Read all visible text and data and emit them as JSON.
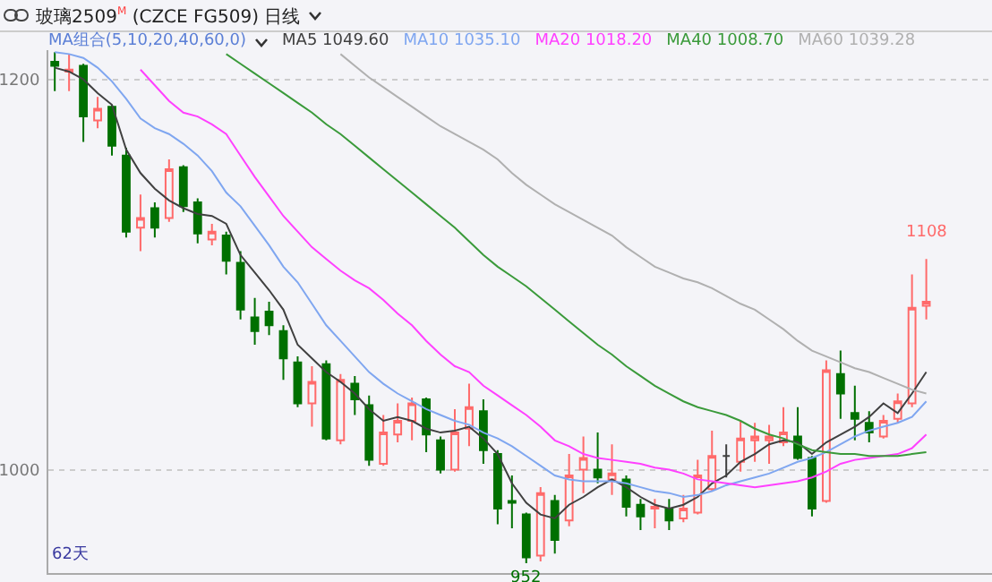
{
  "chart_data": {
    "type": "candlestick",
    "title": "玻璃2509$^{M}$ (CZCE FG509)  日线",
    "subtitle": "MA组合(5,10,20,40,60,0)",
    "categories": [
      null,
      null,
      null,
      null,
      null,
      null,
      null,
      null,
      null,
      null,
      null,
      null,
      null,
      null,
      null,
      null,
      null,
      null,
      null,
      null,
      null,
      null,
      null,
      null,
      null,
      null,
      null,
      null,
      null,
      null,
      null,
      null,
      null,
      null,
      null,
      null,
      null,
      null,
      null,
      null,
      null,
      null,
      null,
      null,
      null,
      null,
      null,
      null,
      null,
      null,
      null,
      null,
      null,
      null,
      null,
      null,
      null,
      null,
      null,
      null,
      null,
      null
    ],
    "ohlc": [
      [
        1209,
        1214,
        1194,
        1207
      ],
      [
        1204,
        1213,
        1194,
        1205
      ],
      [
        1207,
        1208,
        1168,
        1181
      ],
      [
        1179,
        1191,
        1175,
        1185
      ],
      [
        1186,
        1187,
        1161,
        1166
      ],
      [
        1161,
        1165,
        1119,
        1122
      ],
      [
        1124,
        1141,
        1112,
        1129
      ],
      [
        1134,
        1137,
        1119,
        1124
      ],
      [
        1129,
        1159,
        1127,
        1154
      ],
      [
        1155,
        1156,
        1132,
        1135
      ],
      [
        1137,
        1139,
        1116,
        1121
      ],
      [
        1118,
        1126,
        1115,
        1122
      ],
      [
        1120,
        1122,
        1100,
        1107
      ],
      [
        1106,
        1112,
        1077,
        1082
      ],
      [
        1078,
        1088,
        1064,
        1071
      ],
      [
        1081,
        1086,
        1069,
        1074
      ],
      [
        1071,
        1074,
        1046,
        1057
      ],
      [
        1055,
        1058,
        1032,
        1034
      ],
      [
        1034,
        1053,
        1022,
        1045
      ],
      [
        1054,
        1056,
        1015,
        1016
      ],
      [
        1015,
        1049,
        1013,
        1046
      ],
      [
        1044,
        1048,
        1028,
        1036
      ],
      [
        1033,
        1038,
        1002,
        1005
      ],
      [
        1003,
        1028,
        1002,
        1019
      ],
      [
        1018,
        1034,
        1014,
        1025
      ],
      [
        1025,
        1037,
        1015,
        1034
      ],
      [
        1036,
        1037,
        1009,
        1018
      ],
      [
        1015,
        1017,
        998,
        1000
      ],
      [
        1000,
        1031,
        999,
        1019
      ],
      [
        1021,
        1044,
        1012,
        1032
      ],
      [
        1030,
        1036,
        1003,
        1010
      ],
      [
        1008,
        1010,
        972,
        980
      ],
      [
        984,
        997,
        970,
        983
      ],
      [
        977,
        978,
        952,
        955
      ],
      [
        956,
        991,
        953,
        988
      ],
      [
        984,
        987,
        957,
        964
      ],
      [
        974,
        1008,
        971,
        997
      ],
      [
        1000,
        1017,
        988,
        1006
      ],
      [
        1000,
        1019,
        993,
        996
      ],
      [
        995,
        1013,
        987,
        998
      ],
      [
        995,
        997,
        976,
        981
      ],
      [
        982,
        985,
        969,
        976
      ],
      [
        980,
        985,
        970,
        981
      ],
      [
        980,
        985,
        969,
        974
      ],
      [
        975,
        987,
        973,
        980
      ],
      [
        978,
        1005,
        977,
        997
      ],
      [
        990,
        1020,
        989,
        1007
      ],
      [
        1007,
        1013,
        996,
        1007
      ],
      [
        1004,
        1025,
        999,
        1016
      ],
      [
        1015,
        1024,
        1004,
        1017
      ],
      [
        1015,
        1023,
        1003,
        1017
      ],
      [
        1014,
        1032,
        1012,
        1019
      ],
      [
        1017,
        1032,
        1005,
        1006
      ],
      [
        1006,
        1007,
        976,
        980
      ],
      [
        984,
        1056,
        983,
        1051
      ],
      [
        1049,
        1061,
        1026,
        1039
      ],
      [
        1029,
        1043,
        1015,
        1026
      ],
      [
        1024,
        1030,
        1014,
        1019
      ],
      [
        1017,
        1028,
        1016,
        1025
      ],
      [
        1026,
        1039,
        1024,
        1035
      ],
      [
        1034,
        1100,
        1032,
        1083
      ],
      [
        1084,
        1108,
        1077,
        1086
      ]
    ],
    "colors": [
      "#007000",
      "#ff6a6a",
      "#007000",
      "#ff6a6a",
      "#007000",
      "#007000",
      "#ff6a6a",
      "#007000",
      "#ff6a6a",
      "#007000",
      "#007000",
      "#ff6a6a",
      "#007000",
      "#007000",
      "#007000",
      "#007000",
      "#007000",
      "#007000",
      "#ff6a6a",
      "#007000",
      "#ff6a6a",
      "#007000",
      "#007000",
      "#ff6a6a",
      "#ff6a6a",
      "#ff6a6a",
      "#007000",
      "#007000",
      "#ff6a6a",
      "#ff6a6a",
      "#007000",
      "#007000",
      "#007000",
      "#007000",
      "#ff6a6a",
      "#007000",
      "#ff6a6a",
      "#ff6a6a",
      "#007000",
      "#ff6a6a",
      "#007000",
      "#007000",
      "#ff6a6a",
      "#007000",
      "#ff6a6a",
      "#ff6a6a",
      "#ff6a6a",
      "#404040",
      "#ff6a6a",
      "#ff6a6a",
      "#ff6a6a",
      "#ff6a6a",
      "#007000",
      "#007000",
      "#ff6a6a",
      "#007000",
      "#007000",
      "#007000",
      "#ff6a6a",
      "#ff6a6a",
      "#ff6a6a",
      "#ff6a6a"
    ],
    "series": [
      {
        "type": "line",
        "name": "MA5 1049.60",
        "color": "#404040",
        "values": [
          1206,
          1204,
          1200,
          1193,
          1187,
          1164,
          1152,
          1144,
          1138,
          1134,
          1131,
          1130,
          1126,
          1110,
          1101,
          1092,
          1082,
          1064,
          1057,
          1050,
          1045,
          1039,
          1031,
          1025,
          1027,
          1025,
          1021,
          1019,
          1020,
          1022,
          1016,
          1008,
          993,
          983,
          977,
          975,
          982,
          986,
          991,
          995,
          991,
          986,
          982,
          980,
          982,
          986,
          993,
          997,
          1004,
          1008,
          1013,
          1015,
          1014,
          1008,
          1014,
          1018,
          1022,
          1027,
          1034,
          1029,
          1039,
          1050
        ]
      },
      {
        "type": "line",
        "name": "MA10 1035.10",
        "color": "#7fa6f0",
        "values": [
          1214,
          1213,
          1211,
          1206,
          1199,
          1190,
          1180,
          1175,
          1172,
          1167,
          1161,
          1153,
          1142,
          1135,
          1125,
          1115,
          1104,
          1096,
          1085,
          1074,
          1066,
          1058,
          1050,
          1044,
          1039,
          1035,
          1031,
          1028,
          1025,
          1023,
          1019,
          1016,
          1012,
          1007,
          1002,
          997,
          995,
          994,
          994,
          994,
          993,
          991,
          989,
          988,
          986,
          987,
          989,
          992,
          994,
          996,
          998,
          1001,
          1004,
          1006,
          1009,
          1013,
          1017,
          1020,
          1022,
          1024,
          1027,
          1035
        ]
      },
      {
        "type": "line",
        "name": "MA20 1018.20",
        "color": "#ff40ff",
        "values": [
          null,
          null,
          null,
          null,
          null,
          null,
          1205,
          1197,
          1189,
          1183,
          1181,
          1177,
          1172,
          1161,
          1150,
          1140,
          1130,
          1122,
          1114,
          1108,
          1102,
          1097,
          1093,
          1087,
          1080,
          1074,
          1066,
          1059,
          1053,
          1050,
          1043,
          1038,
          1033,
          1028,
          1022,
          1015,
          1012,
          1008,
          1006,
          1005,
          1004,
          1003,
          1001,
          1000,
          998,
          995,
          994,
          993,
          992,
          991,
          992,
          993,
          994,
          996,
          999,
          1003,
          1005,
          1006,
          1007,
          1008,
          1011,
          1018
        ]
      },
      {
        "type": "line",
        "name": "MA40 1008.70",
        "color": "#3a9a3a",
        "values": [
          null,
          null,
          null,
          null,
          null,
          null,
          null,
          null,
          null,
          null,
          null,
          null,
          1213,
          1208,
          1203,
          1198,
          1193,
          1188,
          1183,
          1177,
          1172,
          1166,
          1160,
          1154,
          1148,
          1142,
          1136,
          1130,
          1124,
          1117,
          1110,
          1104,
          1099,
          1094,
          1088,
          1082,
          1076,
          1070,
          1064,
          1059,
          1053,
          1048,
          1043,
          1039,
          1035,
          1032,
          1030,
          1028,
          1025,
          1021,
          1018,
          1016,
          1013,
          1010,
          1009,
          1008,
          1008,
          1007,
          1007,
          1007,
          1008,
          1009
        ]
      },
      {
        "type": "line",
        "name": "MA60 1039.28",
        "color": "#b0b0b0",
        "values": [
          null,
          null,
          null,
          null,
          null,
          null,
          null,
          null,
          null,
          null,
          null,
          null,
          null,
          null,
          null,
          null,
          null,
          null,
          null,
          null,
          1213,
          1207,
          1201,
          1196,
          1191,
          1186,
          1181,
          1176,
          1172,
          1168,
          1164,
          1159,
          1152,
          1146,
          1141,
          1136,
          1132,
          1128,
          1124,
          1120,
          1114,
          1109,
          1104,
          1101,
          1098,
          1096,
          1093,
          1089,
          1085,
          1082,
          1077,
          1072,
          1066,
          1061,
          1058,
          1055,
          1052,
          1050,
          1047,
          1044,
          1041,
          1039
        ]
      }
    ],
    "ylim": [
      947,
      1215
    ],
    "yticks": [
      1000,
      1200
    ],
    "grid": "y",
    "legend": "top left",
    "tick_labels": "y",
    "annotations": [
      {
        "text": "952",
        "y": 952
      },
      {
        "text": "1108",
        "y": 1108
      },
      "62天"
    ]
  }
}
